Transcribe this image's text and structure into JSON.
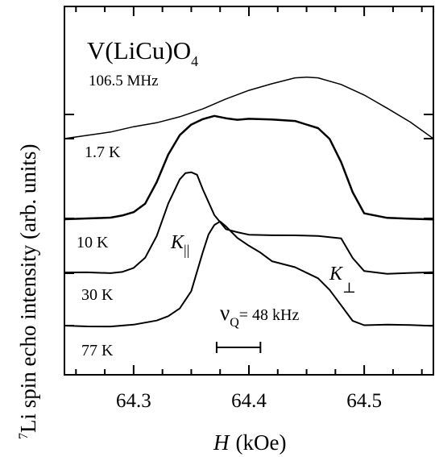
{
  "chart_data": {
    "type": "line",
    "title": "V(LiCu)O",
    "title_sub": "4",
    "frequency": "106.5 MHz",
    "xlabel_symbol": "H",
    "xlabel_unit": "(kOe)",
    "ylabel_sup": "7",
    "ylabel_main": "Li   spin echo intensity  (arb. units)",
    "xlim": [
      64.24,
      64.56
    ],
    "x_ticks": [
      {
        "value": 64.3,
        "label": "64.3"
      },
      {
        "value": 64.4,
        "label": "64.4"
      },
      {
        "value": 64.5,
        "label": "64.5"
      }
    ],
    "grid": false,
    "legend": "none",
    "series": [
      {
        "name": "1.7 K",
        "x": [
          64.24,
          64.26,
          64.28,
          64.3,
          64.32,
          64.34,
          64.36,
          64.38,
          64.4,
          64.42,
          64.44,
          64.45,
          64.46,
          64.48,
          64.5,
          64.52,
          64.54,
          64.56
        ],
        "y": [
          0.0,
          0.05,
          0.1,
          0.18,
          0.24,
          0.33,
          0.45,
          0.6,
          0.73,
          0.83,
          0.92,
          0.93,
          0.92,
          0.82,
          0.66,
          0.46,
          0.25,
          0.0
        ]
      },
      {
        "name": "10 K",
        "x": [
          64.24,
          64.26,
          64.28,
          64.29,
          64.3,
          64.31,
          64.32,
          64.33,
          64.34,
          64.35,
          64.36,
          64.37,
          64.38,
          64.39,
          64.4,
          64.42,
          64.44,
          64.46,
          64.47,
          64.48,
          64.49,
          64.5,
          64.52,
          64.54,
          64.56
        ],
        "y": [
          0.0,
          0.0,
          0.0,
          0.02,
          0.06,
          0.15,
          0.36,
          0.62,
          0.8,
          0.9,
          0.96,
          1.0,
          0.98,
          0.96,
          0.96,
          0.95,
          0.94,
          0.88,
          0.78,
          0.55,
          0.25,
          0.04,
          0.0,
          0.0,
          0.0
        ]
      },
      {
        "name": "30 K",
        "x": [
          64.24,
          64.26,
          64.28,
          64.29,
          64.3,
          64.31,
          64.32,
          64.33,
          64.34,
          64.345,
          64.35,
          64.355,
          64.36,
          64.37,
          64.38,
          64.39,
          64.4,
          64.42,
          64.44,
          64.46,
          64.48,
          64.49,
          64.5,
          64.52,
          64.54,
          64.56
        ],
        "y": [
          0.0,
          0.0,
          0.0,
          0.02,
          0.06,
          0.15,
          0.35,
          0.66,
          0.9,
          0.97,
          0.98,
          0.95,
          0.8,
          0.55,
          0.42,
          0.4,
          0.38,
          0.37,
          0.36,
          0.35,
          0.33,
          0.15,
          0.03,
          0.0,
          0.0,
          0.0
        ]
      },
      {
        "name": "77 K",
        "x": [
          64.24,
          64.26,
          64.28,
          64.3,
          64.32,
          64.33,
          64.34,
          64.35,
          64.36,
          64.365,
          64.37,
          64.375,
          64.38,
          64.39,
          64.4,
          64.41,
          64.42,
          64.44,
          64.46,
          64.47,
          64.48,
          64.49,
          64.5,
          64.52,
          64.54,
          64.56
        ],
        "y": [
          0.0,
          0.0,
          0.0,
          0.01,
          0.04,
          0.08,
          0.16,
          0.33,
          0.7,
          0.86,
          0.94,
          0.97,
          0.93,
          0.83,
          0.76,
          0.69,
          0.6,
          0.54,
          0.44,
          0.34,
          0.2,
          0.05,
          0.0,
          0.0,
          0.0,
          0.0
        ]
      }
    ],
    "annotations": {
      "k_parallel": "K",
      "k_parallel_sub": "||",
      "k_perp": "K",
      "k_perp_sub": "⊥",
      "nu_symbol": "ν",
      "nu_sub": "Q",
      "nu_value": "= 48 kHz",
      "bar_x": [
        64.372,
        64.41
      ]
    }
  }
}
